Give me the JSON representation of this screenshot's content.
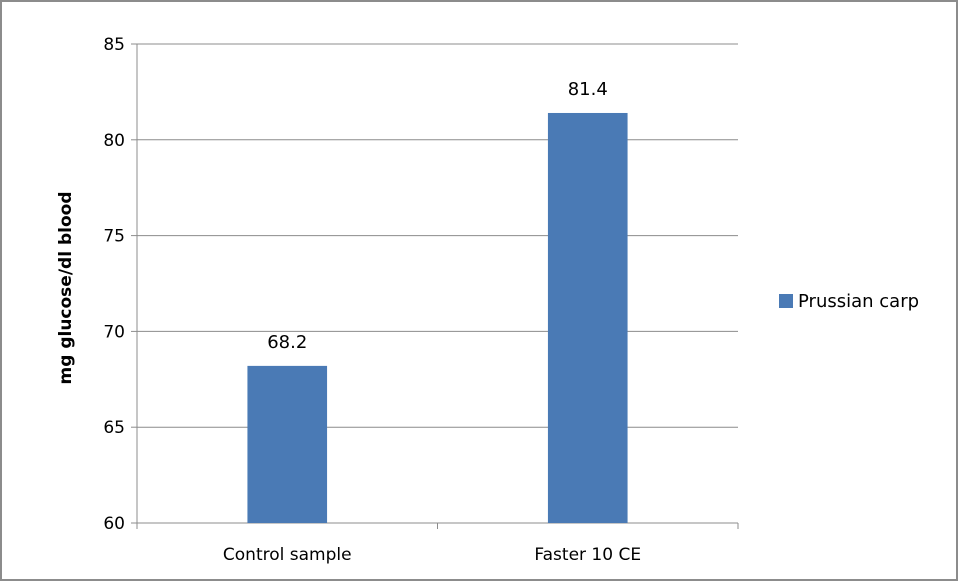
{
  "chart_data": {
    "type": "bar",
    "categories": [
      "Control sample",
      "Faster 10 CE"
    ],
    "series": [
      {
        "name": "Prussian carp",
        "values": [
          68.2,
          81.4
        ],
        "color": "#4a7ab5"
      }
    ],
    "data_labels": [
      "68.2",
      "81.4"
    ],
    "ylabel": "mg glucose/dl blood",
    "xlabel": "",
    "ylim": [
      60,
      85
    ],
    "yticks": [
      60,
      65,
      70,
      75,
      80,
      85
    ],
    "grid": true,
    "legend_position": "right"
  }
}
